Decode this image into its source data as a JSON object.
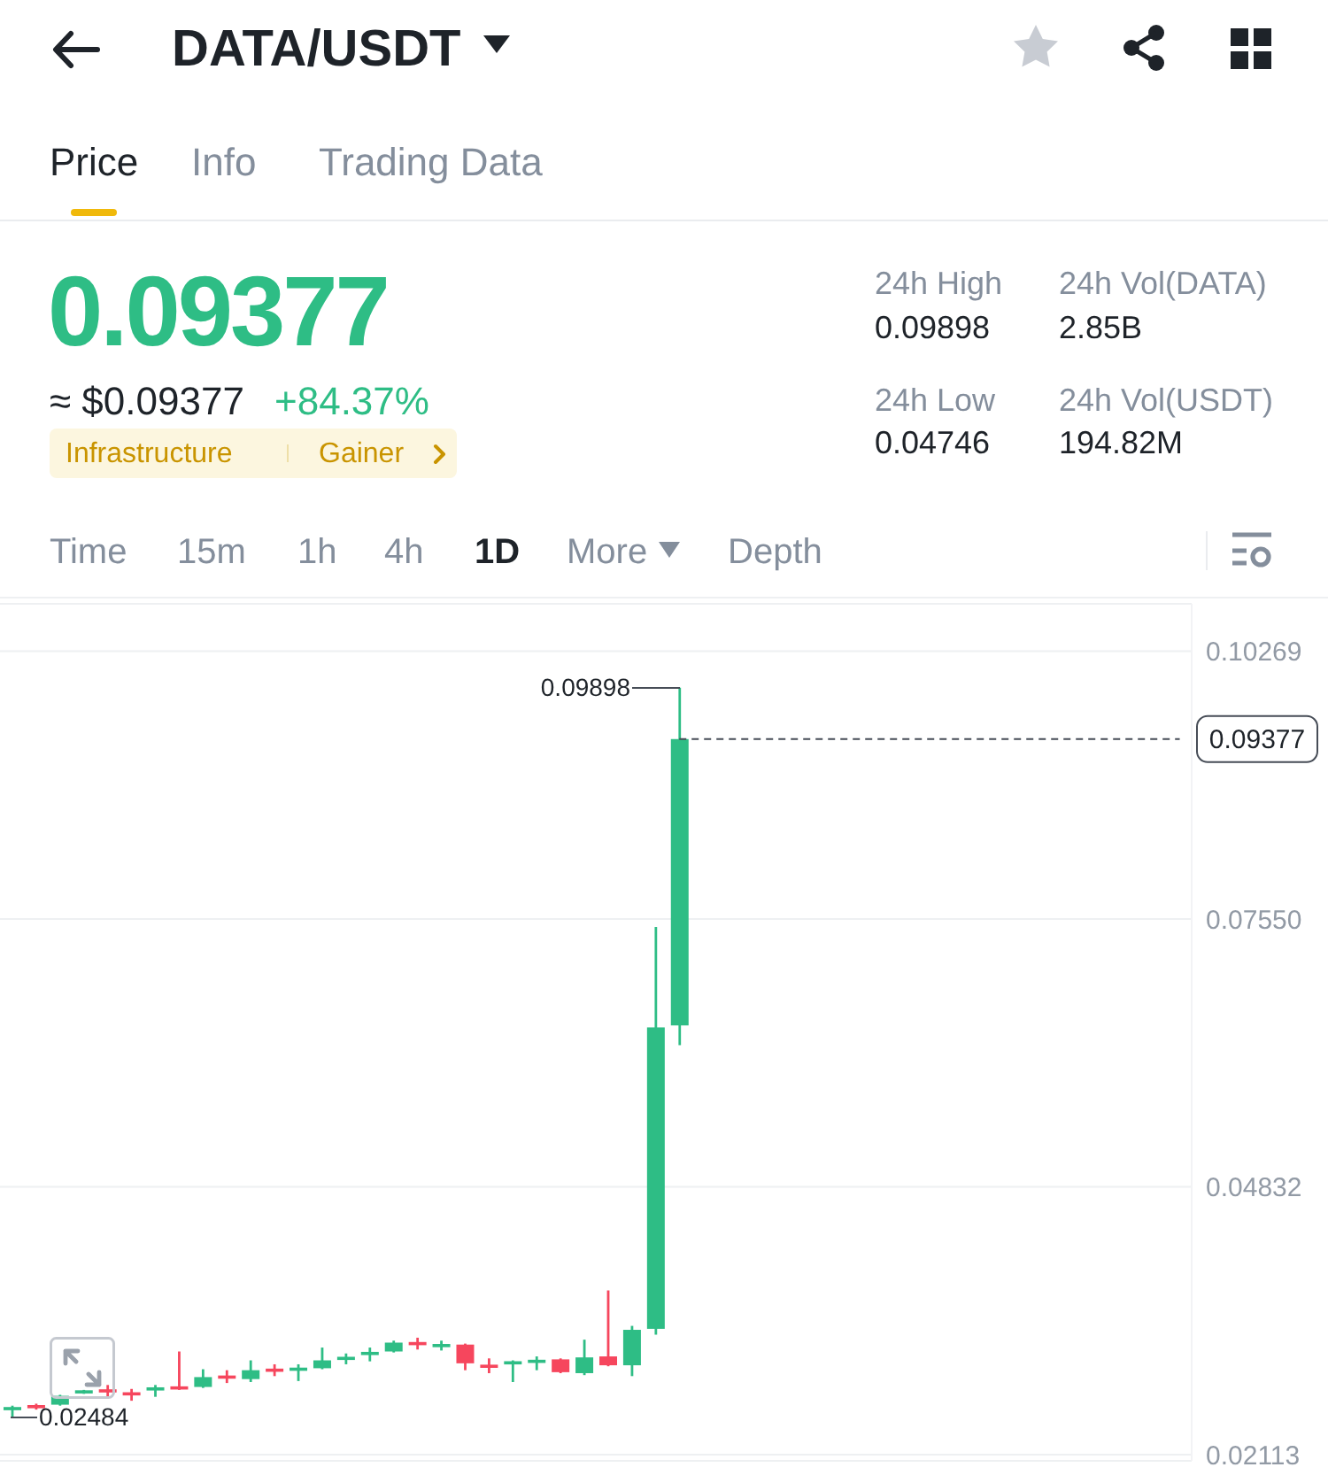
{
  "chart_data": {
    "type": "candlestick",
    "title": "DATA/USDT",
    "categories": [
      null,
      null,
      null,
      null,
      null,
      null,
      null,
      null,
      null,
      null,
      null,
      null,
      null,
      null,
      null,
      null,
      null,
      null,
      null,
      null,
      null,
      null,
      null,
      null,
      null,
      null,
      null,
      null,
      null,
      null,
      null,
      null,
      null,
      null,
      null,
      null,
      null,
      null,
      null,
      null,
      null,
      null,
      null,
      null,
      null,
      null,
      null,
      null,
      null,
      null
    ],
    "ohlc": [
      [
        0.0257,
        0.0261,
        0.02484,
        0.0259
      ],
      [
        0.0261,
        0.0263,
        0.0257,
        0.0259
      ],
      [
        0.0262,
        0.0272,
        0.0261,
        0.0271
      ],
      [
        0.0274,
        0.0277,
        0.0273,
        0.0276
      ],
      [
        0.0277,
        0.0282,
        0.027,
        0.0275
      ],
      [
        0.0274,
        0.0278,
        0.0266,
        0.0272
      ],
      [
        0.0277,
        0.0282,
        0.027,
        0.0279
      ],
      [
        0.028,
        0.0316,
        0.0277,
        0.0278
      ],
      [
        0.028,
        0.0298,
        0.0279,
        0.029
      ],
      [
        0.0291,
        0.0297,
        0.0284,
        0.0289
      ],
      [
        0.0288,
        0.0307,
        0.0285,
        0.0297
      ],
      [
        0.0298,
        0.0303,
        0.0291,
        0.0296
      ],
      [
        0.0297,
        0.0303,
        0.0286,
        0.0299
      ],
      [
        0.0299,
        0.032,
        0.0298,
        0.0307
      ],
      [
        0.0308,
        0.0314,
        0.0303,
        0.031
      ],
      [
        0.0313,
        0.032,
        0.0306,
        0.0315
      ],
      [
        0.0316,
        0.0327,
        0.0315,
        0.0325
      ],
      [
        0.0325,
        0.033,
        0.0318,
        0.0323
      ],
      [
        0.0321,
        0.0327,
        0.0317,
        0.0323
      ],
      [
        0.0323,
        0.0324,
        0.0297,
        0.0304
      ],
      [
        0.0302,
        0.0309,
        0.0294,
        0.03
      ],
      [
        0.0304,
        0.0307,
        0.0285,
        0.0305
      ],
      [
        0.0305,
        0.0311,
        0.0297,
        0.0307
      ],
      [
        0.0308,
        0.0309,
        0.0294,
        0.0295
      ],
      [
        0.0294,
        0.0328,
        0.0292,
        0.031
      ],
      [
        0.0311,
        0.0378,
        0.0301,
        0.0302
      ],
      [
        0.0302,
        0.0342,
        0.0291,
        0.0338
      ],
      [
        0.0339,
        0.0747,
        0.0333,
        0.0645
      ],
      [
        0.0647,
        0.09898,
        0.0627,
        0.09377
      ],
      null,
      null,
      null,
      null,
      null,
      null,
      null,
      null,
      null,
      null,
      null,
      null,
      null,
      null,
      null,
      null,
      null,
      null,
      null,
      null,
      null
    ],
    "colors": [
      "#2ebd85",
      "#f6465d",
      "#2ebd85",
      "#2ebd85",
      "#f6465d",
      "#f6465d",
      "#2ebd85",
      "#f6465d",
      "#2ebd85",
      "#f6465d",
      "#2ebd85",
      "#f6465d",
      "#2ebd85",
      "#2ebd85",
      "#2ebd85",
      "#2ebd85",
      "#2ebd85",
      "#f6465d",
      "#2ebd85",
      "#f6465d",
      "#f6465d",
      "#2ebd85",
      "#2ebd85",
      "#f6465d",
      "#2ebd85",
      "#f6465d",
      "#2ebd85",
      "#2ebd85",
      "#2ebd85",
      null,
      null,
      null,
      null,
      null,
      null,
      null,
      null,
      null,
      null,
      null,
      null,
      null,
      null,
      null,
      null,
      null,
      null,
      null,
      null,
      null
    ],
    "ylim": [
      0.0205,
      0.1075
    ],
    "yticks": [
      0.02113,
      0.04832,
      {
        "value": 0.0755,
        "label": "0.07550"
      },
      0.10269
    ],
    "grid": "y",
    "tick_labels": "y",
    "ref_lines": [
      {
        "axis": "y",
        "value": 0.09377,
        "label": "0.09377",
        "line_style": "dashed",
        "color": "#474d57"
      }
    ],
    "annotations": [
      "Price",
      "Info",
      "Trading Data",
      "0.09377",
      "≈ $0.09377",
      "+84.37%",
      "Infrastructure",
      "Gainer",
      "24h High",
      "0.09898",
      "24h Vol(DATA)",
      "2.85B",
      "24h Low",
      "0.04746",
      "24h Vol(USDT)",
      "194.82M",
      "Time",
      "15m",
      "1h",
      "4h",
      "1D",
      "More",
      "Depth",
      "0.09898",
      "0.02484"
    ]
  }
}
